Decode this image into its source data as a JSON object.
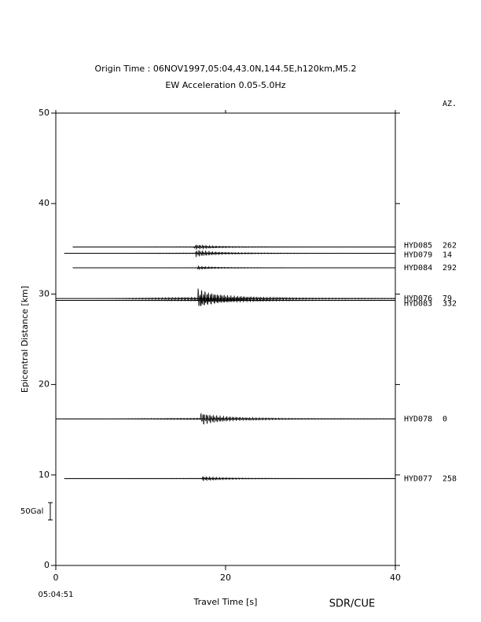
{
  "chart_data": {
    "type": "record_section",
    "title": "Origin Time : 06NOV1997,05:04,43.0N,144.5E,h120km,M5.2",
    "subtitle": "EW Acceleration 0.05-5.0Hz",
    "azimuth_header": "AZ.",
    "x_label": "Travel Time [s]",
    "y_label": "Epicentral Distance [km]",
    "start_time": "05:04:51",
    "scale_label": "50Gal",
    "credit": "SDR/CUE",
    "xlim": [
      0,
      40
    ],
    "xticks": [
      0,
      20,
      40
    ],
    "ylim": [
      0,
      50
    ],
    "yticks": [
      0,
      10,
      20,
      30,
      40,
      50
    ],
    "traces": [
      {
        "name": "HYD085",
        "azimuth": 262,
        "distance": 35.2,
        "start": 2.0
      },
      {
        "name": "HYD079",
        "azimuth": 14,
        "distance": 34.5,
        "start": 1.0
      },
      {
        "name": "HYD084",
        "azimuth": 292,
        "distance": 32.9,
        "start": 2.0
      },
      {
        "name": "HYD076",
        "azimuth": 79,
        "distance": 29.5,
        "start": 0
      },
      {
        "name": "HYD083",
        "azimuth": 332,
        "distance": 29.3,
        "start": 0
      },
      {
        "name": "HYD078",
        "azimuth": 0,
        "distance": 16.2,
        "start": 0
      },
      {
        "name": "HYD077",
        "azimuth": 258,
        "distance": 9.6,
        "start": 1.0
      }
    ]
  }
}
